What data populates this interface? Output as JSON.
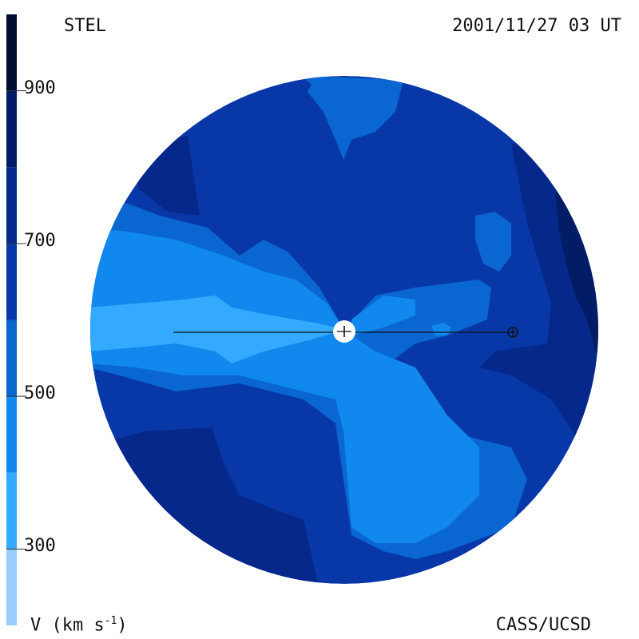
{
  "header": {
    "source": "STEL",
    "datetime": "2001/11/27 03 UT"
  },
  "footer": {
    "unit_base": "V (km s",
    "unit_exp": "-1",
    "unit_close": ")",
    "credit": "CASS/UCSD"
  },
  "chart_data": {
    "type": "heatmap",
    "title": "",
    "colorbar": {
      "ticks": [
        900,
        700,
        500,
        300
      ],
      "tick_labels": [
        "900",
        "700",
        "500",
        "300"
      ],
      "range": [
        200,
        1000
      ],
      "bands": [
        {
          "from": 200,
          "to": 300,
          "color": "#99ccff"
        },
        {
          "from": 300,
          "to": 400,
          "color": "#33aaff"
        },
        {
          "from": 400,
          "to": 500,
          "color": "#1188ee"
        },
        {
          "from": 500,
          "to": 600,
          "color": "#0a66d0"
        },
        {
          "from": 600,
          "to": 700,
          "color": "#0838a8"
        },
        {
          "from": 700,
          "to": 800,
          "color": "#05288a"
        },
        {
          "from": 800,
          "to": 900,
          "color": "#031c66"
        },
        {
          "from": 900,
          "to": 1000,
          "color": "#010c33"
        }
      ]
    },
    "markers": [
      {
        "name": "sun",
        "symbol": "white-disk"
      },
      {
        "name": "earth",
        "symbol": "circle-plus"
      }
    ]
  },
  "colors": {
    "v300": "#33aaff",
    "v400": "#1188ee",
    "v500": "#0a66d0",
    "v600": "#0838a8",
    "v700": "#05288a",
    "v800": "#031c66",
    "v900": "#010c33"
  }
}
